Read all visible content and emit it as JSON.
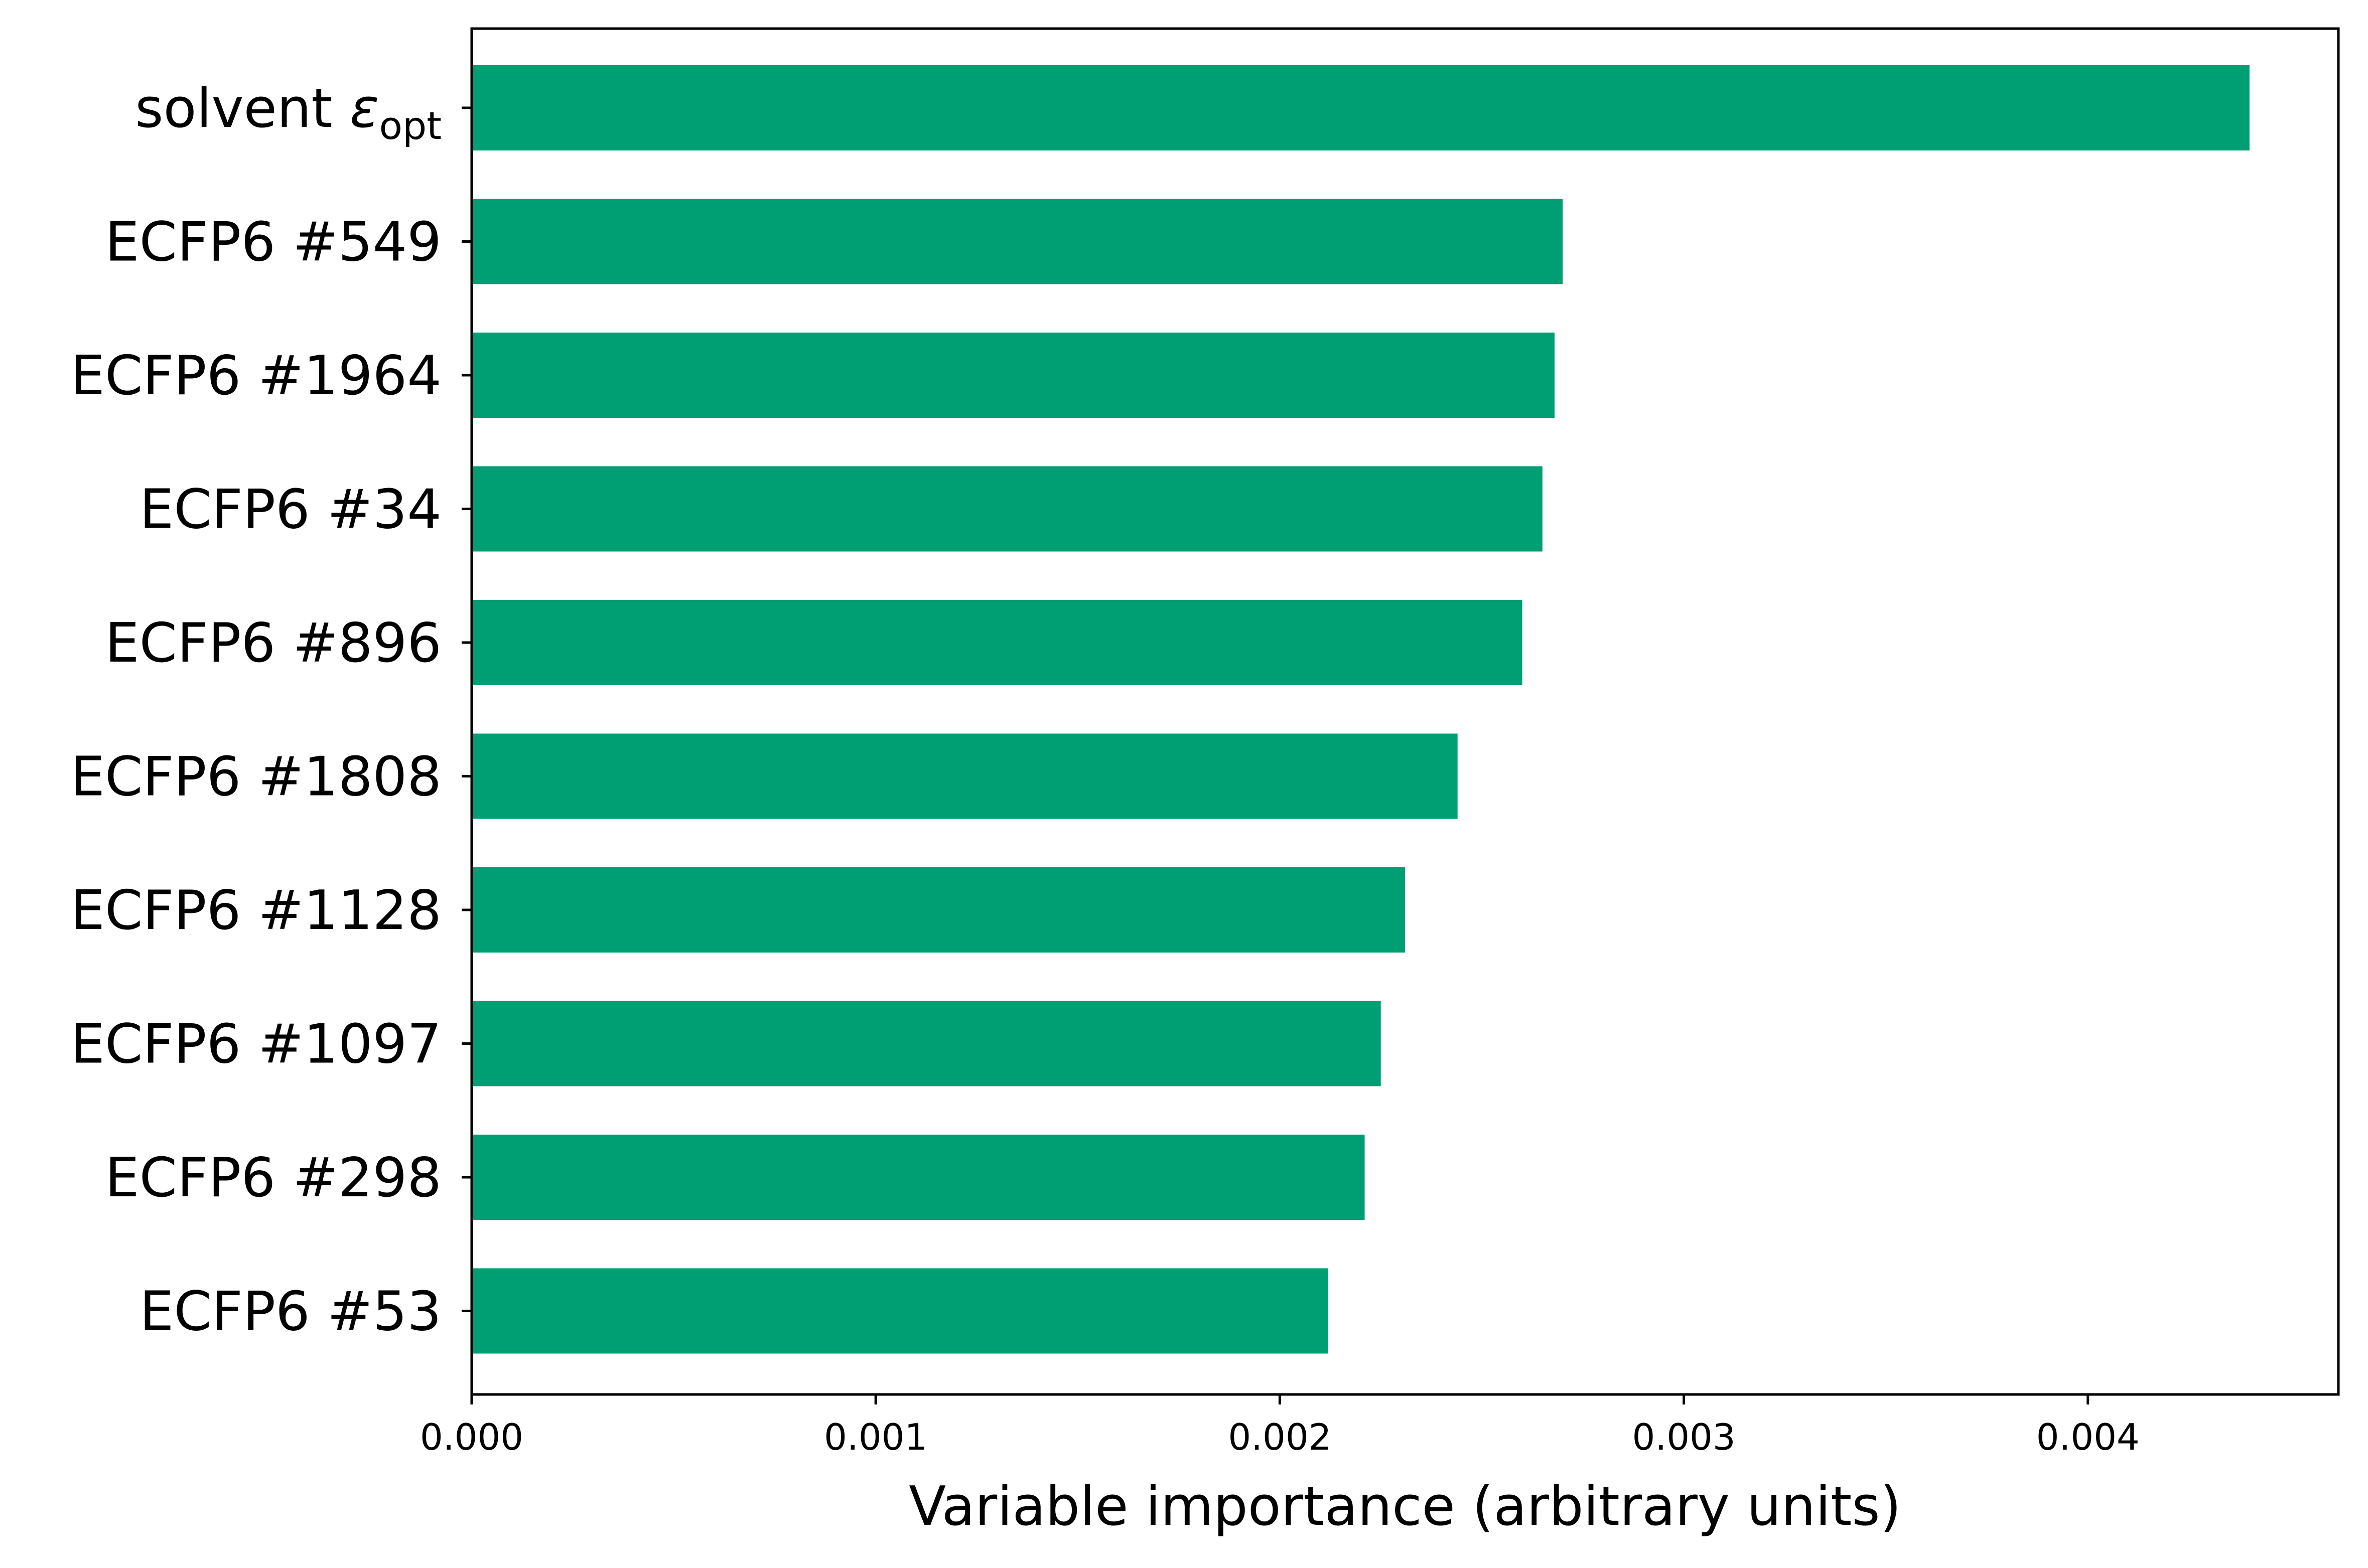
{
  "chart_data": {
    "type": "bar",
    "orientation": "horizontal",
    "categories": [
      {
        "text": "solvent ",
        "symbol": "ε",
        "subscript": "opt"
      },
      {
        "text": "ECFP6 #549"
      },
      {
        "text": "ECFP6 #1964"
      },
      {
        "text": "ECFP6 #34"
      },
      {
        "text": "ECFP6 #896"
      },
      {
        "text": "ECFP6 #1808"
      },
      {
        "text": "ECFP6 #1128"
      },
      {
        "text": "ECFP6 #1097"
      },
      {
        "text": "ECFP6 #298"
      },
      {
        "text": "ECFP6 #53"
      }
    ],
    "values": [
      0.0044,
      0.0027,
      0.00268,
      0.00265,
      0.0026,
      0.00244,
      0.00231,
      0.00225,
      0.00221,
      0.00212
    ],
    "xlabel": "Variable importance (arbitrary units)",
    "ylabel": "",
    "title": "",
    "xlim": [
      0,
      0.00462
    ],
    "xticks": [
      "0.000",
      "0.001",
      "0.002",
      "0.003",
      "0.004"
    ],
    "xtick_values": [
      0,
      0.001,
      0.002,
      0.003,
      0.004
    ],
    "bar_color": "#009E73",
    "grid": false,
    "legend": "none"
  }
}
